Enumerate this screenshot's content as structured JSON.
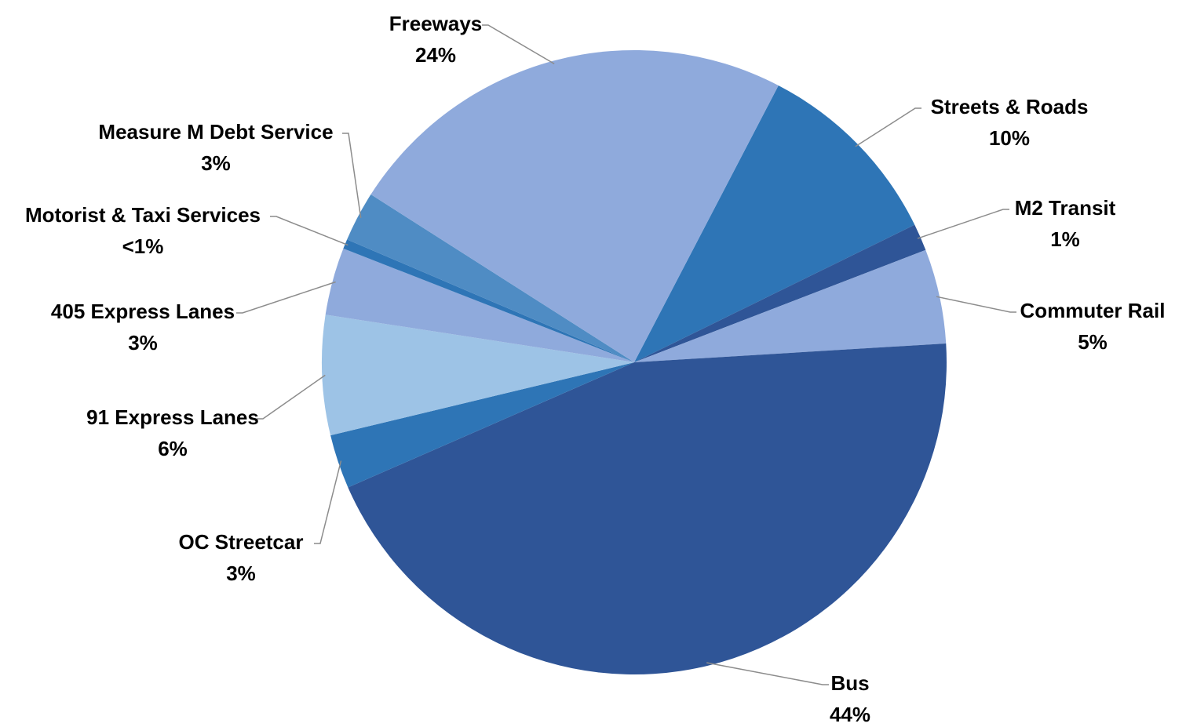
{
  "chart_data": {
    "type": "pie",
    "title": "",
    "start_category": "Streets & Roads",
    "direction": "clockwise",
    "slices": [
      {
        "label": "Streets & Roads",
        "value_label": "10%",
        "value": 10.1,
        "color": "#2e75b6"
      },
      {
        "label": "M2 Transit",
        "value_label": "1%",
        "value": 1.4,
        "color": "#2f5597"
      },
      {
        "label": "Commuter Rail",
        "value_label": "5%",
        "value": 4.9,
        "color": "#8faadc"
      },
      {
        "label": "Bus",
        "value_label": "44%",
        "value": 44.4,
        "color": "#2f5597"
      },
      {
        "label": "OC Streetcar",
        "value_label": "3%",
        "value": 2.8,
        "color": "#2e75b6"
      },
      {
        "label": "91 Express Lanes",
        "value_label": "6%",
        "value": 6.2,
        "color": "#9dc3e6"
      },
      {
        "label": "405 Express Lanes",
        "value_label": "3%",
        "value": 3.5,
        "color": "#8faadc"
      },
      {
        "label": "Motorist & Taxi Services",
        "value_label": "<1%",
        "value": 0.5,
        "color": "#2e75b6"
      },
      {
        "label": "Measure M Debt Service",
        "value_label": "3%",
        "value": 2.6,
        "color": "#4f8cc4"
      },
      {
        "label": "Freeways",
        "value_label": "24%",
        "value": 23.6,
        "color": "#8faadc"
      }
    ]
  }
}
